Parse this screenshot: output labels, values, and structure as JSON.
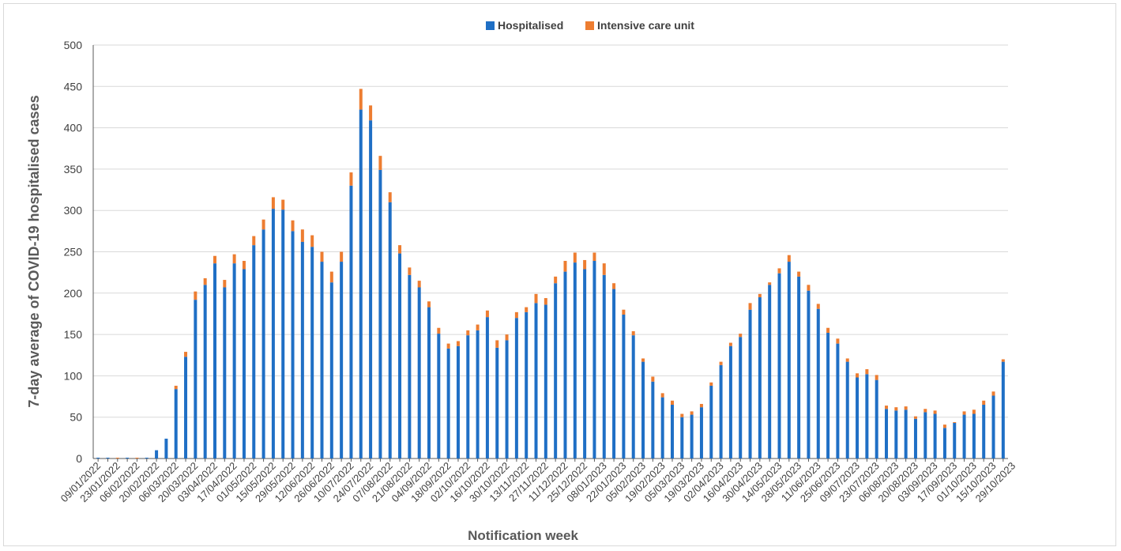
{
  "chart_data": {
    "type": "bar",
    "stacked": true,
    "xlabel": "Notification week",
    "ylabel": "7-day average of COVID-19 hospitalised cases",
    "ylim": [
      0,
      500
    ],
    "yticks": [
      0,
      50,
      100,
      150,
      200,
      250,
      300,
      350,
      400,
      450,
      500
    ],
    "grid": true,
    "legend_position": "top-center",
    "x_tick_labels": [
      "09/01/2022",
      "23/01/2022",
      "06/02/2022",
      "20/02/2022",
      "06/03/2022",
      "20/03/2022",
      "03/04/2022",
      "17/04/2022",
      "01/05/2022",
      "15/05/2022",
      "29/05/2022",
      "12/06/2022",
      "26/06/2022",
      "10/07/2022",
      "24/07/2022",
      "07/08/2022",
      "21/08/2022",
      "04/09/2022",
      "18/09/2022",
      "02/10/2022",
      "16/10/2022",
      "30/10/2022",
      "13/11/2022",
      "27/11/2022",
      "11/12/2022",
      "25/12/2022",
      "08/01/2023",
      "22/01/2023",
      "05/02/2023",
      "19/02/2023",
      "05/03/2023",
      "19/03/2023",
      "02/04/2023",
      "16/04/2023",
      "30/04/2023",
      "14/05/2023",
      "28/05/2023",
      "11/06/2023",
      "25/06/2023",
      "09/07/2023",
      "23/07/2023",
      "06/08/2023",
      "20/08/2023",
      "03/09/2023",
      "17/09/2023",
      "01/10/2023",
      "15/10/2023",
      "29/10/2023"
    ],
    "series": [
      {
        "name": "Hospitalised",
        "color": "#1f6fc5",
        "values": [
          1,
          1,
          0,
          1,
          0,
          1,
          10,
          24,
          84,
          123,
          192,
          210,
          236,
          207,
          236,
          229,
          258,
          277,
          302,
          301,
          275,
          262,
          256,
          238,
          213,
          238,
          330,
          422,
          409,
          349,
          310,
          248,
          222,
          207,
          183,
          151,
          133,
          136,
          149,
          155,
          171,
          134,
          143,
          170,
          177,
          188,
          186,
          212,
          226,
          237,
          229,
          239,
          222,
          205,
          174,
          149,
          117,
          93,
          74,
          65,
          50,
          53,
          62,
          88,
          113,
          136,
          147,
          180,
          195,
          210,
          224,
          238,
          220,
          203,
          181,
          152,
          139,
          117,
          98,
          102,
          95,
          60,
          58,
          59,
          48,
          56,
          54,
          37,
          43,
          53,
          54,
          65,
          76,
          117
        ]
      },
      {
        "name": "Intensive care unit",
        "color": "#ed7d31",
        "values": [
          0,
          0,
          1,
          0,
          1,
          0,
          0,
          0,
          4,
          6,
          10,
          8,
          9,
          9,
          11,
          10,
          11,
          12,
          14,
          12,
          13,
          15,
          14,
          12,
          13,
          12,
          16,
          25,
          18,
          17,
          12,
          10,
          9,
          8,
          7,
          7,
          6,
          6,
          6,
          7,
          8,
          9,
          7,
          7,
          6,
          11,
          8,
          8,
          13,
          12,
          11,
          10,
          14,
          7,
          6,
          5,
          4,
          6,
          5,
          5,
          4,
          4,
          4,
          4,
          4,
          4,
          4,
          8,
          4,
          3,
          6,
          8,
          6,
          7,
          6,
          6,
          6,
          4,
          5,
          6,
          6,
          4,
          4,
          4,
          3,
          4,
          4,
          4,
          1,
          4,
          5,
          5,
          5,
          3
        ]
      }
    ]
  }
}
